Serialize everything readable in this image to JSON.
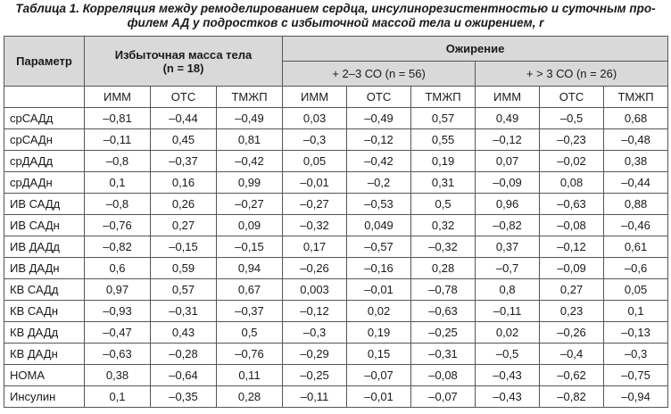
{
  "caption": {
    "line1": "Таблица 1. Корреляция между ремоделированием сердца, инсулинорезистентностью и суточным про-",
    "line2": "филем АД у подростков с избыточной массой тела и ожирением, r"
  },
  "header": {
    "param": "Параметр",
    "group1_line1": "Избыточная масса тела",
    "group1_line2": "(n = 18)",
    "group2": "Ожирение",
    "sub1": "+ 2–3 СО (n = 56)",
    "sub2": "+ > 3 СО (n = 26)",
    "cols": [
      "ИММ",
      "ОТС",
      "ТМЖП",
      "ИММ",
      "ОТС",
      "ТМЖП",
      "ИММ",
      "ОТС",
      "ТМЖП"
    ]
  },
  "rows": [
    {
      "label": "срСАДд",
      "values": [
        "–0,81",
        "–0,44",
        "–0,49",
        "0,03",
        "–0,49",
        "0,57",
        "0,49",
        "–0,5",
        "0,68"
      ]
    },
    {
      "label": "срСАДн",
      "values": [
        "–0,11",
        "0,45",
        "0,81",
        "–0,3",
        "–0,12",
        "0,55",
        "–0,12",
        "–0,23",
        "–0,48"
      ]
    },
    {
      "label": "срДАДд",
      "values": [
        "–0,8",
        "–0,37",
        "–0,42",
        "0,05",
        "–0,42",
        "0,19",
        "0,07",
        "–0,02",
        "0,38"
      ]
    },
    {
      "label": "срДАДн",
      "values": [
        "0,1",
        "0,16",
        "0,99",
        "–0,01",
        "–0,2",
        "0,31",
        "–0,09",
        "0,08",
        "–0,44"
      ]
    },
    {
      "label": "ИВ САДд",
      "values": [
        "–0,8",
        "0,26",
        "–0,27",
        "–0,27",
        "–0,53",
        "0,5",
        "0,96",
        "–0,63",
        "0,88"
      ]
    },
    {
      "label": "ИВ САДн",
      "values": [
        "–0,76",
        "0,27",
        "0,09",
        "–0,32",
        "0,049",
        "0,32",
        "–0,82",
        "–0,08",
        "–0,46"
      ]
    },
    {
      "label": "ИВ ДАДд",
      "values": [
        "–0,82",
        "–0,15",
        "–0,15",
        "0,17",
        "–0,57",
        "–0,32",
        "0,37",
        "–0,12",
        "0,61"
      ]
    },
    {
      "label": "ИВ ДАДн",
      "values": [
        "0,6",
        "0,59",
        "0,94",
        "–0,26",
        "–0,16",
        "0,28",
        "–0,7",
        "–0,09",
        "–0,6"
      ]
    },
    {
      "label": "КВ САДд",
      "values": [
        "0,97",
        "0,57",
        "0,67",
        "0,003",
        "–0,01",
        "–0,78",
        "0,8",
        "0,27",
        "0,05"
      ]
    },
    {
      "label": "КВ САДн",
      "values": [
        "–0,93",
        "–0,31",
        "–0,37",
        "–0,12",
        "0,02",
        "–0,63",
        "–0,11",
        "0,23",
        "0,1"
      ]
    },
    {
      "label": "КВ ДАДд",
      "values": [
        "–0,47",
        "0,43",
        "0,5",
        "–0,3",
        "0,19",
        "–0,25",
        "0,02",
        "–0,26",
        "–0,13"
      ]
    },
    {
      "label": "КВ ДАДн",
      "values": [
        "–0,63",
        "–0,28",
        "–0,76",
        "–0,29",
        "0,15",
        "–0,31",
        "–0,5",
        "–0,4",
        "–0,3"
      ]
    },
    {
      "label": "HOMA",
      "values": [
        "0,38",
        "–0,64",
        "0,11",
        "–0,25",
        "–0,07",
        "–0,08",
        "–0,43",
        "–0,62",
        "–0,75"
      ]
    },
    {
      "label": "Инсулин",
      "values": [
        "0,1",
        "–0,35",
        "0,28",
        "–0,11",
        "–0,01",
        "–0,07",
        "–0,43",
        "–0,82",
        "–0,94"
      ]
    }
  ]
}
